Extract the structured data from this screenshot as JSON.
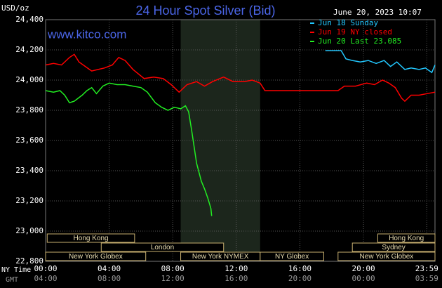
{
  "chart_data": {
    "type": "line",
    "title": "24 Hour Spot Silver (Bid)",
    "timestamp": "June 20, 2023 10:07",
    "watermark": "www.kitco.com",
    "y_label": "USD/oz",
    "x_label": "NY Time",
    "x2_label": "GMT",
    "xlim": [
      0,
      24.5
    ],
    "xticks": [
      {
        "value": 0,
        "label": "00:00"
      },
      {
        "value": 4,
        "label": "04:00"
      },
      {
        "value": 8,
        "label": "08:00"
      },
      {
        "value": 12,
        "label": "12:00"
      },
      {
        "value": 16,
        "label": "16:00"
      },
      {
        "value": 20,
        "label": "20:00"
      },
      {
        "value": 23.983,
        "label": "23:59"
      }
    ],
    "gmt_labels": [
      "04:00",
      "08:00",
      "12:00",
      "16:00",
      "20:00",
      "00:00",
      "03:59"
    ],
    "ylim": [
      22.8,
      24.4
    ],
    "yticks": [
      {
        "value": 24.4,
        "label": "24,400"
      },
      {
        "value": 24.2,
        "label": "24,200"
      },
      {
        "value": 24.0,
        "label": "24,000"
      },
      {
        "value": 23.8,
        "label": "23,800"
      },
      {
        "value": 23.6,
        "label": "23,600"
      },
      {
        "value": 23.4,
        "label": "23,400"
      },
      {
        "value": 23.2,
        "label": "23,200"
      },
      {
        "value": 23.0,
        "label": "23,000"
      },
      {
        "value": 22.8,
        "label": "22,800"
      }
    ],
    "grid": true,
    "shaded_range": [
      8.5,
      13.5
    ],
    "series": [
      {
        "name": "Jun 18 Sunday",
        "color": "#22c8ff",
        "x": [
          17.6,
          18.6,
          18.9,
          19.3,
          19.8,
          20.3,
          20.8,
          21.3,
          21.7,
          22.1,
          22.6,
          23.0,
          23.5,
          23.9,
          24.3,
          24.5
        ],
        "values": [
          24.195,
          24.195,
          24.14,
          24.13,
          24.12,
          24.13,
          24.11,
          24.13,
          24.09,
          24.12,
          24.07,
          24.08,
          24.07,
          24.08,
          24.05,
          24.1
        ]
      },
      {
        "name": "Jun 19 NY closed",
        "color": "#ff0000",
        "x": [
          0,
          0.5,
          1.0,
          1.5,
          1.8,
          2.1,
          2.5,
          2.9,
          3.3,
          3.7,
          4.2,
          4.6,
          5.0,
          5.5,
          6.2,
          6.8,
          7.4,
          7.9,
          8.4,
          8.9,
          9.5,
          10.0,
          10.5,
          11.2,
          11.8,
          12.5,
          13.0,
          13.5,
          13.8,
          15,
          16,
          17,
          18.4,
          18.8,
          19.5,
          20.2,
          20.7,
          21.2,
          21.6,
          22.0,
          22.4,
          22.6,
          23.0,
          23.5,
          24.0,
          24.5
        ],
        "values": [
          24.1,
          24.11,
          24.1,
          24.15,
          24.17,
          24.12,
          24.09,
          24.06,
          24.07,
          24.08,
          24.1,
          24.15,
          24.13,
          24.07,
          24.01,
          24.02,
          24.01,
          23.97,
          23.92,
          23.97,
          23.99,
          23.96,
          23.99,
          24.02,
          23.99,
          23.99,
          24.0,
          23.98,
          23.93,
          23.93,
          23.93,
          23.93,
          23.93,
          23.96,
          23.96,
          23.98,
          23.97,
          24.0,
          23.98,
          23.95,
          23.88,
          23.86,
          23.9,
          23.9,
          23.91,
          23.92
        ]
      },
      {
        "name": "Jun 20 Last 23.085",
        "color": "#22ee22",
        "x": [
          0,
          0.5,
          0.9,
          1.2,
          1.5,
          1.8,
          2.3,
          2.6,
          2.9,
          3.2,
          3.6,
          4.0,
          4.5,
          5.0,
          5.5,
          6.0,
          6.4,
          6.9,
          7.3,
          7.7,
          8.1,
          8.5,
          8.8,
          9.0,
          9.2,
          9.5,
          9.8,
          10.0,
          10.2,
          10.4,
          10.45
        ],
        "values": [
          23.93,
          23.92,
          23.93,
          23.9,
          23.85,
          23.86,
          23.9,
          23.93,
          23.95,
          23.91,
          23.96,
          23.98,
          23.97,
          23.97,
          23.96,
          23.95,
          23.92,
          23.85,
          23.82,
          23.8,
          23.82,
          23.81,
          23.83,
          23.79,
          23.66,
          23.45,
          23.33,
          23.28,
          23.22,
          23.15,
          23.1
        ]
      }
    ],
    "sessions": [
      [
        {
          "name": "Hong Kong",
          "start": 0.1,
          "end": 5.6
        },
        {
          "name": "Hong Kong",
          "start": 20.9,
          "end": 24.5
        }
      ],
      [
        {
          "name": "London",
          "start": 3.5,
          "end": 11.2
        },
        {
          "name": "Sydney",
          "start": 19.3,
          "end": 24.5
        }
      ],
      [
        {
          "name": "New York Globex",
          "start": 0,
          "end": 6.3
        },
        {
          "name": "New York NYMEX",
          "start": 8.5,
          "end": 13.5
        },
        {
          "name": "NY Globex",
          "start": 13.5,
          "end": 17.5
        },
        {
          "name": "New York Globex",
          "start": 18.4,
          "end": 24.5
        }
      ]
    ]
  }
}
